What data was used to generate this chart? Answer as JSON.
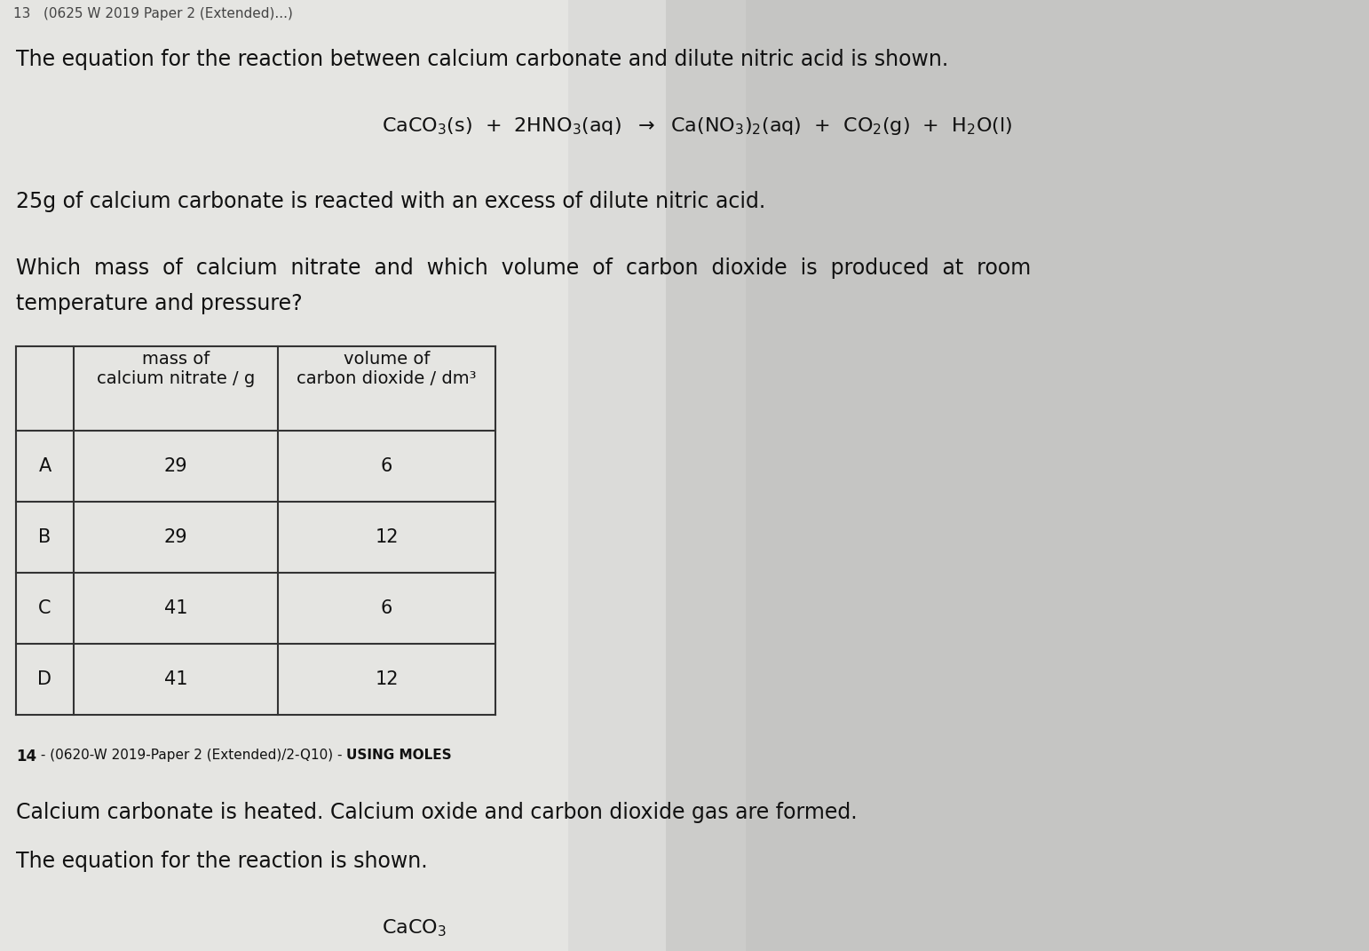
{
  "bg_color": "#c8c8c8",
  "paper_color": "#e8e8e4",
  "text_color": "#111111",
  "top_cut_text": "13   (0625 W 2019 Paper 2 (Extended)...)",
  "para1": "The equation for the reaction between calcium carbonate and dilute nitric acid is shown.",
  "equation_line": "CaCO$_3$(s)  +  2HNO$_3$(aq)  $\\rightarrow$  Ca(NO$_3$)$_2$(aq)  +  CO$_2$(g)  +  H$_2$O(l)",
  "para2": "25g of calcium carbonate is reacted with an excess of dilute nitric acid.",
  "para3_line1": "Which  mass  of  calcium  nitrate  and  which  volume  of  carbon  dioxide  is  produced  at  room",
  "para3_line2": "temperature and pressure?",
  "table_header_col1": "mass of\ncalcium nitrate / g",
  "table_header_col2": "volume of\ncarbon dioxide / dm³",
  "table_rows": [
    [
      "A",
      "29",
      "6"
    ],
    [
      "B",
      "29",
      "12"
    ],
    [
      "C",
      "41",
      "6"
    ],
    [
      "D",
      "41",
      "12"
    ]
  ],
  "footer_14": "14",
  "footer_mid": " - (0620-W 2019-Paper 2 (Extended)/2-Q10) - ",
  "footer_moles": "USING MOLES",
  "next_para1": "Calcium carbonate is heated. Calcium oxide and carbon dioxide gas are formed.",
  "next_para2": "The equation for the reaction is shown.",
  "next_eq_partial": "CaCO$_3$"
}
